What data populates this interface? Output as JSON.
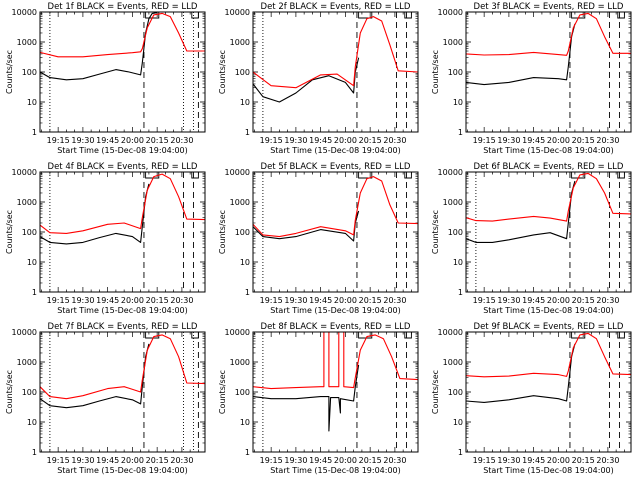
{
  "chart_data": [
    {
      "type": "line",
      "title": "Det 1f BLACK = Events, RED = LLD",
      "xlabel": "Start Time (15-Dec-08 19:04:00)",
      "ylabel": "Counts/sec",
      "xlim": [
        "19:04",
        "20:44"
      ],
      "ylim": [
        1,
        10000
      ],
      "yscale": "log",
      "xticks": [
        "19:15",
        "19:30",
        "19:45",
        "20:00",
        "20:15",
        "20:30"
      ],
      "yticks": [
        "1",
        "10",
        "100",
        "1000",
        "10000"
      ],
      "markers": {
        "dotted": [
          "19:10",
          "20:31",
          "20:37"
        ],
        "dashed": [
          "20:07",
          "20:40"
        ]
      },
      "series": [
        {
          "color": "#000000",
          "x": [
            "19:04",
            "19:10",
            "19:20",
            "19:30",
            "19:40",
            "19:50",
            "19:58",
            "20:05",
            "20:06",
            "20:08",
            "20:10",
            "20:12",
            "20:15"
          ],
          "y": [
            100,
            65,
            55,
            60,
            85,
            120,
            100,
            80,
            200,
            2000,
            6000,
            9000,
            9500
          ]
        },
        {
          "color": "#ff0000",
          "x": [
            "19:04",
            "19:15",
            "19:30",
            "19:45",
            "20:00",
            "20:05",
            "20:06",
            "20:09",
            "20:13",
            "20:18",
            "20:23",
            "20:28",
            "20:33",
            "20:44"
          ],
          "y": [
            450,
            320,
            320,
            380,
            440,
            470,
            600,
            3000,
            8000,
            9000,
            7000,
            2000,
            500,
            500
          ]
        }
      ]
    },
    {
      "type": "line",
      "title": "Det 2f BLACK = Events, RED = LLD",
      "xlabel": "Start Time (15-Dec-08 19:04:00)",
      "ylabel": "Counts/sec",
      "xlim": [
        "19:04",
        "20:44"
      ],
      "ylim": [
        1,
        10000
      ],
      "yscale": "log",
      "xticks": [
        "19:15",
        "19:30",
        "19:45",
        "20:00",
        "20:15",
        "20:30"
      ],
      "yticks": [
        "1",
        "10",
        "100",
        "1000",
        "10000"
      ],
      "markers": {
        "dotted": [
          "19:10"
        ],
        "dashed": [
          "20:07",
          "20:31",
          "20:37"
        ]
      },
      "series": [
        {
          "color": "#000000",
          "x": [
            "19:04",
            "19:10",
            "19:20",
            "19:30",
            "19:40",
            "19:50",
            "20:00",
            "20:05",
            "20:06",
            "20:08"
          ],
          "y": [
            40,
            15,
            10,
            20,
            55,
            75,
            45,
            20,
            100,
            300
          ]
        },
        {
          "color": "#ff0000",
          "x": [
            "19:04",
            "19:15",
            "19:30",
            "19:45",
            "19:55",
            "20:05",
            "20:06",
            "20:09",
            "20:13",
            "20:17",
            "20:22",
            "20:27",
            "20:32",
            "20:44"
          ],
          "y": [
            100,
            35,
            30,
            80,
            85,
            35,
            150,
            2000,
            6000,
            7000,
            5000,
            800,
            110,
            100
          ]
        }
      ]
    },
    {
      "type": "line",
      "title": "Det 3f BLACK = Events, RED = LLD",
      "xlabel": "Start Time (15-Dec-08 19:04:00)",
      "ylabel": "Counts/sec",
      "xlim": [
        "19:04",
        "20:44"
      ],
      "ylim": [
        1,
        10000
      ],
      "yscale": "log",
      "xticks": [
        "19:15",
        "19:30",
        "19:45",
        "20:00",
        "20:15",
        "20:30"
      ],
      "yticks": [
        "1",
        "10",
        "100",
        "1000",
        "10000"
      ],
      "markers": {
        "dotted": [],
        "dashed": [
          "20:07",
          "20:31",
          "20:37"
        ]
      },
      "series": [
        {
          "color": "#000000",
          "x": [
            "19:04",
            "19:15",
            "19:30",
            "19:45",
            "20:00",
            "20:05",
            "20:06",
            "20:08",
            "20:10"
          ],
          "y": [
            45,
            38,
            45,
            65,
            60,
            55,
            150,
            1500,
            4000
          ]
        },
        {
          "color": "#ff0000",
          "x": [
            "19:04",
            "19:15",
            "19:30",
            "19:45",
            "20:00",
            "20:05",
            "20:06",
            "20:09",
            "20:13",
            "20:18",
            "20:23",
            "20:28",
            "20:33",
            "20:44"
          ],
          "y": [
            400,
            370,
            380,
            450,
            380,
            360,
            500,
            3000,
            8000,
            9000,
            6000,
            1500,
            420,
            420
          ]
        }
      ]
    },
    {
      "type": "line",
      "title": "Det 4f BLACK = Events, RED = LLD",
      "xlabel": "Start Time (15-Dec-08 19:04:00)",
      "ylabel": "Counts/sec",
      "xlim": [
        "19:04",
        "20:44"
      ],
      "ylim": [
        1,
        10000
      ],
      "yscale": "log",
      "xticks": [
        "19:15",
        "19:30",
        "19:45",
        "20:00",
        "20:15",
        "20:30"
      ],
      "yticks": [
        "1",
        "10",
        "100",
        "1000",
        "10000"
      ],
      "markers": {
        "dotted": [
          "19:10"
        ],
        "dashed": [
          "20:07",
          "20:31",
          "20:37"
        ]
      },
      "series": [
        {
          "color": "#000000",
          "x": [
            "19:04",
            "19:10",
            "19:20",
            "19:30",
            "19:40",
            "19:50",
            "20:00",
            "20:05",
            "20:06",
            "20:08",
            "20:10"
          ],
          "y": [
            70,
            45,
            40,
            45,
            65,
            90,
            70,
            45,
            150,
            1500,
            4000
          ]
        },
        {
          "color": "#ff0000",
          "x": [
            "19:04",
            "19:10",
            "19:20",
            "19:30",
            "19:45",
            "19:55",
            "20:05",
            "20:06",
            "20:09",
            "20:13",
            "20:18",
            "20:23",
            "20:28",
            "20:33",
            "20:44"
          ],
          "y": [
            170,
            95,
            90,
            110,
            180,
            200,
            130,
            300,
            2500,
            7000,
            8500,
            6000,
            1500,
            270,
            260
          ]
        }
      ]
    },
    {
      "type": "line",
      "title": "Det 5f BLACK = Events, RED = LLD",
      "xlabel": "Start Time (15-Dec-08 19:04:00)",
      "ylabel": "Counts/sec",
      "xlim": [
        "19:04",
        "20:44"
      ],
      "ylim": [
        1,
        10000
      ],
      "yscale": "log",
      "xticks": [
        "19:15",
        "19:30",
        "19:45",
        "20:00",
        "20:15",
        "20:30"
      ],
      "yticks": [
        "1",
        "10",
        "100",
        "1000",
        "10000"
      ],
      "markers": {
        "dotted": [
          "19:10"
        ],
        "dashed": [
          "20:07",
          "20:31",
          "20:37"
        ]
      },
      "series": [
        {
          "color": "#000000",
          "x": [
            "19:04",
            "19:10",
            "19:20",
            "19:30",
            "19:45",
            "20:00",
            "20:05",
            "20:06",
            "20:08"
          ],
          "y": [
            150,
            70,
            60,
            70,
            120,
            90,
            50,
            200,
            500
          ]
        },
        {
          "color": "#ff0000",
          "x": [
            "19:04",
            "19:10",
            "19:20",
            "19:30",
            "19:45",
            "20:00",
            "20:05",
            "20:06",
            "20:09",
            "20:13",
            "20:17",
            "20:22",
            "20:27",
            "20:32",
            "20:44"
          ],
          "y": [
            180,
            80,
            70,
            90,
            150,
            110,
            80,
            250,
            2000,
            6000,
            7000,
            5000,
            800,
            200,
            190
          ]
        }
      ]
    },
    {
      "type": "line",
      "title": "Det 6f BLACK = Events, RED = LLD",
      "xlabel": "Start Time (15-Dec-08 19:04:00)",
      "ylabel": "Counts/sec",
      "xlim": [
        "19:04",
        "20:44"
      ],
      "ylim": [
        1,
        10000
      ],
      "yscale": "log",
      "xticks": [
        "19:15",
        "19:30",
        "19:45",
        "20:00",
        "20:15",
        "20:30"
      ],
      "yticks": [
        "1",
        "10",
        "100",
        "1000",
        "10000"
      ],
      "markers": {
        "dotted": [
          "19:10"
        ],
        "dashed": [
          "20:07",
          "20:31",
          "20:37"
        ]
      },
      "series": [
        {
          "color": "#000000",
          "x": [
            "19:04",
            "19:10",
            "19:20",
            "19:30",
            "19:45",
            "19:55",
            "20:05",
            "20:06",
            "20:08",
            "20:10"
          ],
          "y": [
            60,
            45,
            45,
            55,
            80,
            95,
            60,
            200,
            2000,
            5000
          ]
        },
        {
          "color": "#ff0000",
          "x": [
            "19:04",
            "19:10",
            "19:20",
            "19:30",
            "19:45",
            "19:55",
            "20:05",
            "20:06",
            "20:09",
            "20:13",
            "20:18",
            "20:23",
            "20:28",
            "20:33",
            "20:44"
          ],
          "y": [
            300,
            240,
            230,
            270,
            330,
            290,
            230,
            500,
            3000,
            8000,
            9000,
            6000,
            2000,
            420,
            400
          ]
        }
      ]
    },
    {
      "type": "line",
      "title": "Det 7f BLACK = Events, RED = LLD",
      "xlabel": "Start Time (15-Dec-08 19:04:00)",
      "ylabel": "Counts/sec",
      "xlim": [
        "19:04",
        "20:44"
      ],
      "ylim": [
        1,
        10000
      ],
      "yscale": "log",
      "xticks": [
        "19:15",
        "19:30",
        "19:45",
        "20:00",
        "20:15",
        "20:30"
      ],
      "yticks": [
        "1",
        "10",
        "100",
        "1000",
        "10000"
      ],
      "markers": {
        "dotted": [
          "19:10",
          "20:31",
          "20:37"
        ],
        "dashed": [
          "20:07",
          "20:40"
        ]
      },
      "series": [
        {
          "color": "#000000",
          "x": [
            "19:04",
            "19:10",
            "19:20",
            "19:30",
            "19:40",
            "19:50",
            "20:00",
            "20:05",
            "20:06",
            "20:08",
            "20:10"
          ],
          "y": [
            60,
            35,
            30,
            35,
            50,
            70,
            55,
            40,
            150,
            1500,
            4000
          ]
        },
        {
          "color": "#ff0000",
          "x": [
            "19:04",
            "19:10",
            "19:20",
            "19:30",
            "19:45",
            "19:55",
            "20:05",
            "20:06",
            "20:09",
            "20:13",
            "20:18",
            "20:23",
            "20:28",
            "20:33",
            "20:44"
          ],
          "y": [
            150,
            70,
            60,
            75,
            130,
            150,
            100,
            250,
            2500,
            7000,
            8000,
            6000,
            1500,
            200,
            190
          ]
        }
      ]
    },
    {
      "type": "line",
      "title": "Det 8f BLACK = Events, RED = LLD",
      "xlabel": "Start Time (15-Dec-08 19:04:00)",
      "ylabel": "Counts/sec",
      "xlim": [
        "19:04",
        "20:44"
      ],
      "ylim": [
        1,
        10000
      ],
      "yscale": "log",
      "xticks": [
        "19:15",
        "19:30",
        "19:45",
        "20:00",
        "20:15",
        "20:30"
      ],
      "yticks": [
        "1",
        "10",
        "100",
        "1000",
        "10000"
      ],
      "markers": {
        "dotted": [
          "19:10"
        ],
        "dashed": [
          "20:07",
          "20:31",
          "20:37"
        ]
      },
      "series": [
        {
          "color": "#000000",
          "x": [
            "19:04",
            "19:15",
            "19:30",
            "19:45",
            "19:50",
            "19:50",
            "19:51",
            "19:56",
            "19:57",
            "19:57",
            "20:05",
            "20:06",
            "20:08"
          ],
          "y": [
            70,
            60,
            60,
            70,
            70,
            5,
            65,
            65,
            20,
            60,
            50,
            150,
            800
          ]
        },
        {
          "color": "#ff0000",
          "x": [
            "19:04",
            "19:15",
            "19:30",
            "19:45",
            "19:47",
            "19:47",
            "19:50",
            "19:50",
            "19:56",
            "19:56",
            "19:59",
            "19:59",
            "20:05",
            "20:06",
            "20:09",
            "20:13",
            "20:18",
            "20:23",
            "20:28",
            "20:33",
            "20:44"
          ],
          "y": [
            150,
            130,
            140,
            150,
            150,
            10000,
            10000,
            150,
            150,
            10000,
            10000,
            150,
            140,
            300,
            2500,
            7000,
            8000,
            6000,
            1500,
            280,
            260
          ]
        }
      ]
    },
    {
      "type": "line",
      "title": "Det 9f BLACK = Events, RED = LLD",
      "xlabel": "Start Time (15-Dec-08 19:04:00)",
      "ylabel": "Counts/sec",
      "xlim": [
        "19:04",
        "20:44"
      ],
      "ylim": [
        1,
        10000
      ],
      "yscale": "log",
      "xticks": [
        "19:15",
        "19:30",
        "19:45",
        "20:00",
        "20:15",
        "20:30"
      ],
      "yticks": [
        "1",
        "10",
        "100",
        "1000",
        "10000"
      ],
      "markers": {
        "dotted": [],
        "dashed": [
          "20:07",
          "20:31",
          "20:37"
        ]
      },
      "series": [
        {
          "color": "#000000",
          "x": [
            "19:04",
            "19:15",
            "19:30",
            "19:45",
            "20:00",
            "20:05",
            "20:06",
            "20:08",
            "20:10"
          ],
          "y": [
            50,
            45,
            55,
            75,
            60,
            50,
            150,
            1500,
            4000
          ]
        },
        {
          "color": "#ff0000",
          "x": [
            "19:04",
            "19:15",
            "19:30",
            "19:45",
            "20:00",
            "20:05",
            "20:06",
            "20:09",
            "20:13",
            "20:18",
            "20:23",
            "20:28",
            "20:33",
            "20:44"
          ],
          "y": [
            350,
            320,
            340,
            420,
            380,
            330,
            500,
            3000,
            8000,
            9000,
            6000,
            1500,
            400,
            380
          ]
        }
      ]
    }
  ]
}
